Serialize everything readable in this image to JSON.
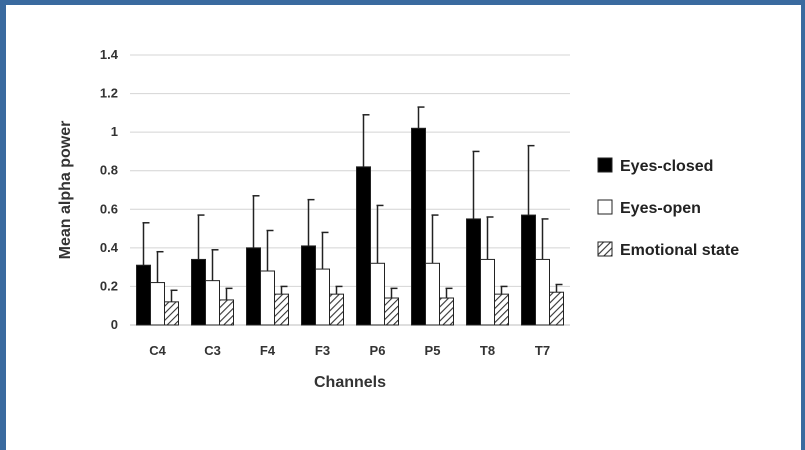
{
  "chart_data": {
    "type": "bar",
    "xlabel": "Channels",
    "ylabel": "Mean alpha power",
    "ylim": [
      0,
      1.4
    ],
    "yticks": [
      "0",
      "0.2",
      "0.4",
      "0.6",
      "0.8",
      "1",
      "1.2",
      "1.4"
    ],
    "grid": true,
    "legend_position": "right",
    "categories": [
      "C4",
      "C3",
      "F4",
      "F3",
      "P6",
      "P5",
      "T8",
      "T7"
    ],
    "series": [
      {
        "name": "Eyes-closed",
        "fill": "#000000",
        "values": [
          0.31,
          0.34,
          0.4,
          0.41,
          0.82,
          1.02,
          0.55,
          0.57
        ],
        "error": [
          0.22,
          0.23,
          0.27,
          0.24,
          0.27,
          0.11,
          0.35,
          0.36
        ]
      },
      {
        "name": "Eyes-open",
        "fill": "#ffffff",
        "values": [
          0.22,
          0.23,
          0.28,
          0.29,
          0.32,
          0.32,
          0.34,
          0.34
        ],
        "error": [
          0.16,
          0.16,
          0.21,
          0.19,
          0.3,
          0.25,
          0.22,
          0.21
        ]
      },
      {
        "name": "Emotional state",
        "fill": "hatch",
        "values": [
          0.12,
          0.13,
          0.16,
          0.16,
          0.14,
          0.14,
          0.16,
          0.17
        ],
        "error": [
          0.06,
          0.06,
          0.04,
          0.04,
          0.05,
          0.05,
          0.04,
          0.04
        ]
      }
    ]
  }
}
